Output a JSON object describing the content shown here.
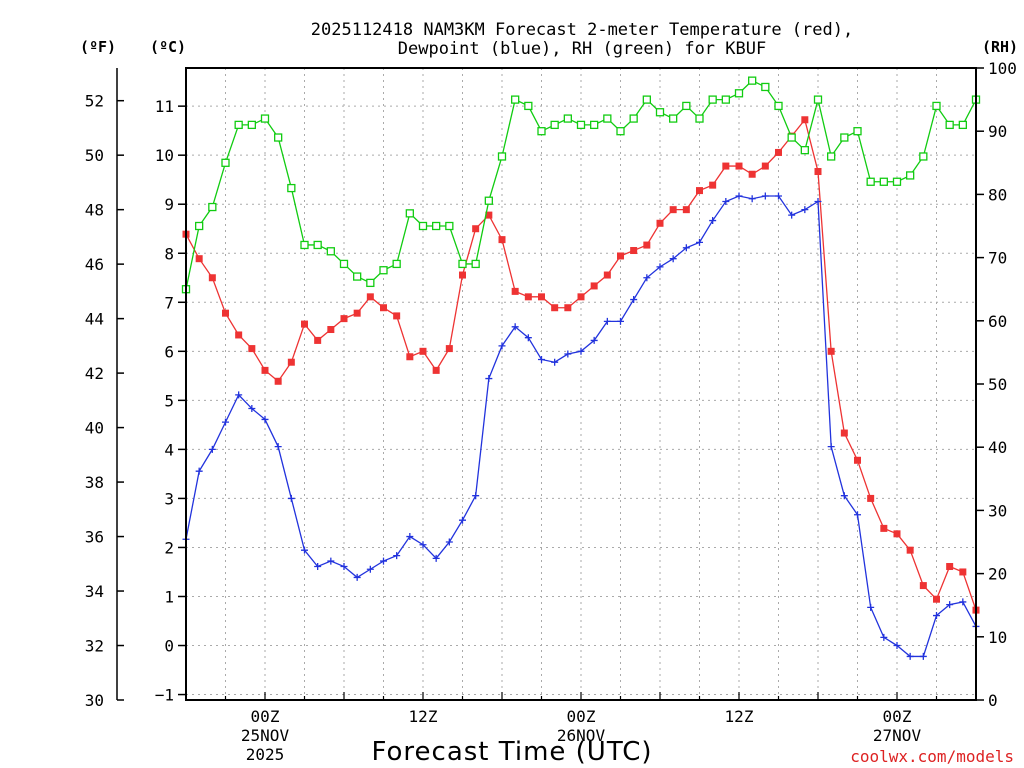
{
  "chart_data": {
    "type": "line",
    "title_line1": "2025112418 NAM3KM Forecast 2-meter Temperature (red),",
    "title_line2": "Dewpoint (blue), RH (green) for KBUF",
    "xlabel": "Forecast Time (UTC)",
    "credit": "coolwx.com/models",
    "colors": {
      "temperature": "#ee3333",
      "dewpoint": "#2233dd",
      "rh": "#11cc11",
      "grid": "#aaaaaa"
    },
    "axes": {
      "left_f": {
        "unit_label": "(ºF)",
        "ticks": [
          "30",
          "32",
          "34",
          "36",
          "38",
          "40",
          "42",
          "44",
          "46",
          "48",
          "50",
          "52"
        ],
        "range": [
          30,
          53.2
        ]
      },
      "left_c": {
        "unit_label": "(ºC)",
        "ticks": [
          "−1",
          "0",
          "1",
          "2",
          "3",
          "4",
          "5",
          "6",
          "7",
          "8",
          "9",
          "10",
          "11"
        ],
        "range": [
          -1.111,
          11.778
        ]
      },
      "right_rh": {
        "unit_label": "(RH)",
        "ticks": [
          "0",
          "10",
          "20",
          "30",
          "40",
          "50",
          "60",
          "70",
          "80",
          "90",
          "100"
        ],
        "range": [
          0,
          100
        ]
      },
      "x": {
        "range_hours": [
          0,
          60
        ],
        "ticks": [
          {
            "hour": 6,
            "label": "00Z",
            "sub1": "25NOV",
            "sub2": "2025"
          },
          {
            "hour": 18,
            "label": "12Z",
            "sub1": "",
            "sub2": ""
          },
          {
            "hour": 30,
            "label": "00Z",
            "sub1": "26NOV",
            "sub2": ""
          },
          {
            "hour": 42,
            "label": "12Z",
            "sub1": "",
            "sub2": ""
          },
          {
            "hour": 54,
            "label": "00Z",
            "sub1": "27NOV",
            "sub2": ""
          }
        ]
      }
    },
    "series": [
      {
        "name": "Temperature (°F)",
        "axis": "left_f",
        "marker": "square-filled",
        "values": [
          47.1,
          46.2,
          45.5,
          44.2,
          43.4,
          42.9,
          42.1,
          41.7,
          42.4,
          43.8,
          43.2,
          43.6,
          44.0,
          44.2,
          44.8,
          44.4,
          44.1,
          42.6,
          42.8,
          42.1,
          42.9,
          45.6,
          47.3,
          47.8,
          46.9,
          45.0,
          44.8,
          44.8,
          44.4,
          44.4,
          44.8,
          45.2,
          45.6,
          46.3,
          46.5,
          46.7,
          47.5,
          48.0,
          48.0,
          48.7,
          48.9,
          49.6,
          49.6,
          49.3,
          49.6,
          50.1,
          50.7,
          51.3,
          49.4,
          42.8,
          39.8,
          38.8,
          37.4,
          36.3,
          36.1,
          35.5,
          34.2,
          33.7,
          34.9,
          34.7,
          33.3
        ]
      },
      {
        "name": "Dewpoint (°F)",
        "axis": "left_f",
        "marker": "plus",
        "values": [
          35.9,
          38.4,
          39.2,
          40.2,
          41.2,
          40.7,
          40.3,
          39.3,
          37.4,
          35.5,
          34.9,
          35.1,
          34.9,
          34.5,
          34.8,
          35.1,
          35.3,
          36.0,
          35.7,
          35.2,
          35.8,
          36.6,
          37.5,
          41.8,
          43.0,
          43.7,
          43.3,
          42.5,
          42.4,
          42.7,
          42.8,
          43.2,
          43.9,
          43.9,
          44.7,
          45.5,
          45.9,
          46.2,
          46.6,
          46.8,
          47.6,
          48.3,
          48.5,
          48.4,
          48.5,
          48.5,
          47.8,
          48.0,
          48.3,
          39.3,
          37.5,
          36.8,
          33.4,
          32.3,
          32.0,
          31.6,
          31.6,
          33.1,
          33.5,
          33.6,
          32.7
        ]
      },
      {
        "name": "RH (%)",
        "axis": "right_rh",
        "marker": "square-open",
        "values": [
          65,
          75,
          78,
          85,
          91,
          91,
          92,
          89,
          81,
          72,
          72,
          71,
          69,
          67,
          66,
          68,
          69,
          77,
          75,
          75,
          75,
          69,
          69,
          79,
          86,
          95,
          94,
          90,
          91,
          92,
          91,
          91,
          92,
          90,
          92,
          95,
          93,
          92,
          94,
          92,
          95,
          95,
          96,
          98,
          97,
          94,
          89,
          87,
          95,
          86,
          89,
          90,
          82,
          82,
          82,
          83,
          86,
          94,
          91,
          91,
          95
        ]
      }
    ]
  }
}
